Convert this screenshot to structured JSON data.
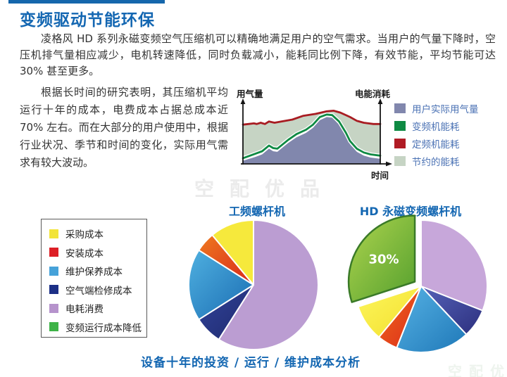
{
  "page": {
    "title": "变频驱动节能环保",
    "para1": "凌格风 HD 系列永磁变频空气压缩机可以精确地满足用户的空气需求。当用户的气量下降时，空压机排气量相应减少，电机转速降低，同时负载减小，能耗同比例下降，有效节能，平均节能可达 30% 甚至更多。",
    "para2": "根据长时间的研究表明，其压缩机平均运行十年的成本，电费成本占据总成本近 70% 左右。而在大部分的用户使用中，根据行业状况、季节和时间的变化，实际用气需求有较大波动。",
    "watermark": "空配优品",
    "caption": "设备十年的投资 / 运行 / 维护成本分析"
  },
  "colors": {
    "heading_blue": "#1467b2",
    "accent_bar": "#1567ac",
    "legend_text_blue": "#4b72b4",
    "body_text": "#333333",
    "actual_demand_fill": "#8187ad",
    "vfd_line_green": "#0e8a43",
    "fixed_line_red": "#a81c22",
    "saved_fill": "#c6d4c4"
  },
  "area_legend": [
    {
      "label": "用户实际用气量",
      "color": "#8187ad"
    },
    {
      "label": "变频机能耗",
      "color": "#0e8a43"
    },
    {
      "label": "定频机能耗",
      "color": "#b01b24"
    },
    {
      "label": "节约的能耗",
      "color": "#c6d4c4"
    }
  ],
  "cost_legend": [
    {
      "label": "采购成本",
      "color": "#f2e438"
    },
    {
      "label": "安装成本",
      "color": "#dd1f26"
    },
    {
      "label": "维护保养成本",
      "color": "#46a2d9"
    },
    {
      "label": "空气端检修成本",
      "color": "#1c2f86"
    },
    {
      "label": "电耗消费",
      "color": "#b693cc"
    },
    {
      "label": "变频运行成本降低",
      "color": "#3eb348"
    }
  ],
  "chart_data": [
    {
      "type": "area",
      "title": "变频机与定频机能耗对比（概念图，相对值 0-100）",
      "xlabel": "时间",
      "ylabel_left": "用气量",
      "ylabel_right": "电能消耗",
      "axes_numeric": false,
      "legend_position": "right",
      "x_range": [
        0,
        100
      ],
      "y_range": [
        0,
        100
      ],
      "series": [
        {
          "name": "定频机能耗",
          "style": "line",
          "color": "#a81c22",
          "points": [
            [
              0,
              62
            ],
            [
              4,
              63
            ],
            [
              8,
              64
            ],
            [
              10,
              63
            ],
            [
              13,
              65
            ],
            [
              16,
              63
            ],
            [
              19,
              67
            ],
            [
              23,
              65
            ],
            [
              28,
              67
            ],
            [
              36,
              70
            ],
            [
              44,
              76
            ],
            [
              53,
              79
            ],
            [
              61,
              83
            ],
            [
              66,
              84
            ],
            [
              71,
              81
            ],
            [
              78,
              74
            ],
            [
              83,
              68
            ],
            [
              88,
              65
            ],
            [
              95,
              63
            ],
            [
              100,
              63
            ]
          ]
        },
        {
          "name": "变频机能耗",
          "style": "line",
          "color": "#0e8a43",
          "points": [
            [
              0,
              9
            ],
            [
              9,
              16
            ],
            [
              14,
              20
            ],
            [
              19,
              29
            ],
            [
              22,
              25
            ],
            [
              25,
              24
            ],
            [
              33,
              38
            ],
            [
              39,
              47
            ],
            [
              46,
              54
            ],
            [
              51,
              62
            ],
            [
              56,
              74
            ],
            [
              61,
              78
            ],
            [
              65,
              77
            ],
            [
              70,
              67
            ],
            [
              75,
              49
            ],
            [
              78,
              36
            ],
            [
              83,
              24
            ],
            [
              88,
              18
            ],
            [
              93,
              15
            ],
            [
              100,
              13
            ]
          ]
        },
        {
          "name": "用户实际用气量",
          "style": "area",
          "color": "#8187ad",
          "points": [
            [
              0,
              5
            ],
            [
              9,
              11
            ],
            [
              14,
              15
            ],
            [
              19,
              24
            ],
            [
              22,
              20
            ],
            [
              25,
              19
            ],
            [
              33,
              33
            ],
            [
              39,
              42
            ],
            [
              46,
              49
            ],
            [
              51,
              57
            ],
            [
              56,
              69
            ],
            [
              61,
              74
            ],
            [
              65,
              73
            ],
            [
              70,
              62
            ],
            [
              75,
              44
            ],
            [
              78,
              31
            ],
            [
              83,
              19
            ],
            [
              88,
              13
            ],
            [
              93,
              10
            ],
            [
              100,
              8
            ]
          ]
        },
        {
          "name": "节约的能耗",
          "style": "fill-between",
          "upper": "定频机能耗",
          "lower": "变频机能耗",
          "color": "#c6d4c4"
        }
      ]
    },
    {
      "type": "pie",
      "title": "工频螺杆机",
      "start_angle_deg": 0,
      "direction": "clockwise",
      "slices": [
        {
          "label": "电耗消费",
          "value": 59,
          "color": "#bb9dd2"
        },
        {
          "label": "空气端检修成本",
          "value": 7,
          "gradient": [
            "#32439a",
            "#1e2a6e"
          ]
        },
        {
          "label": "维护保养成本",
          "value": 18,
          "gradient": [
            "#4fb0e0",
            "#1a6cb2"
          ]
        },
        {
          "label": "安装成本",
          "value": 5,
          "gradient": [
            "#ef7a1e",
            "#d8261c"
          ]
        },
        {
          "label": "采购成本",
          "value": 11,
          "color": "#f6e93c"
        }
      ]
    },
    {
      "type": "pie",
      "title": "HD 永磁变频螺杆机",
      "start_angle_deg": 0,
      "direction": "clockwise",
      "slices": [
        {
          "label": "电耗消费",
          "value": 31,
          "color": "#c7a7da"
        },
        {
          "label": "空气端检修成本",
          "value": 7,
          "gradient": [
            "#5563b8",
            "#2c2f7e"
          ]
        },
        {
          "label": "维护保养成本",
          "value": 18,
          "gradient": [
            "#56b2e4",
            "#1f78b8"
          ]
        },
        {
          "label": "安装成本",
          "value": 5,
          "gradient": [
            "#ef6a1c",
            "#dc2c1a"
          ]
        },
        {
          "label": "采购成本",
          "value": 9,
          "gradient": [
            "#fdf65c",
            "#f2df2e"
          ]
        },
        {
          "label": "变频运行成本降低",
          "value": 30,
          "gradient": [
            "#aed44e",
            "#55a02e"
          ],
          "exploded": true,
          "data_label": "30%",
          "border_color": "#3a7a28"
        }
      ]
    }
  ]
}
